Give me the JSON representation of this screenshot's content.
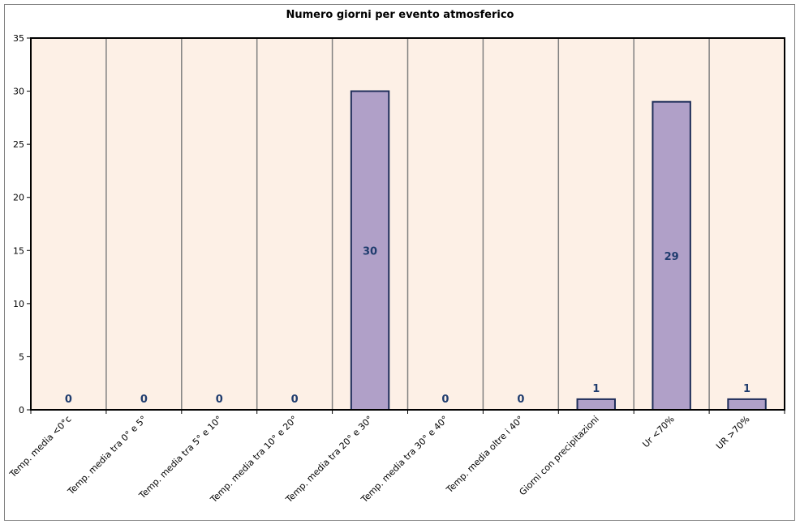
{
  "chart_data": {
    "type": "bar",
    "title": "Numero giorni per evento atmosferico",
    "categories": [
      "Temp. media <0°c",
      "Temp. media tra 0° e 5°",
      "Temp. media tra 5° e 10°",
      "Temp. media tra 10° e 20°",
      "Temp. media tra 20° e 30°",
      "Temp. media tra 30° e 40°",
      "Temp. media oltre i 40°",
      "Giorni con precipitazioni",
      "Ur <70%",
      "UR >70%"
    ],
    "values": [
      0,
      0,
      0,
      0,
      30,
      0,
      0,
      1,
      29,
      1
    ],
    "data_labels": [
      "0",
      "0",
      "0",
      "0",
      "30",
      "0",
      "0",
      "1",
      "29",
      "1"
    ],
    "ylim": [
      0,
      35
    ],
    "yticks": [
      "0",
      "5",
      "10",
      "15",
      "20",
      "25",
      "30",
      "35"
    ],
    "ytick_values": [
      0,
      5,
      10,
      15,
      20,
      25,
      30,
      35
    ],
    "grid": "vertical category separators",
    "legend": "none",
    "colors": {
      "plot_background": "#fdf0e6",
      "bar_fill": "#b0a0c8",
      "bar_stroke": "#1f2e5a",
      "data_label": "#1f3c6e",
      "axis": "#000000",
      "separator": "#808080"
    }
  }
}
